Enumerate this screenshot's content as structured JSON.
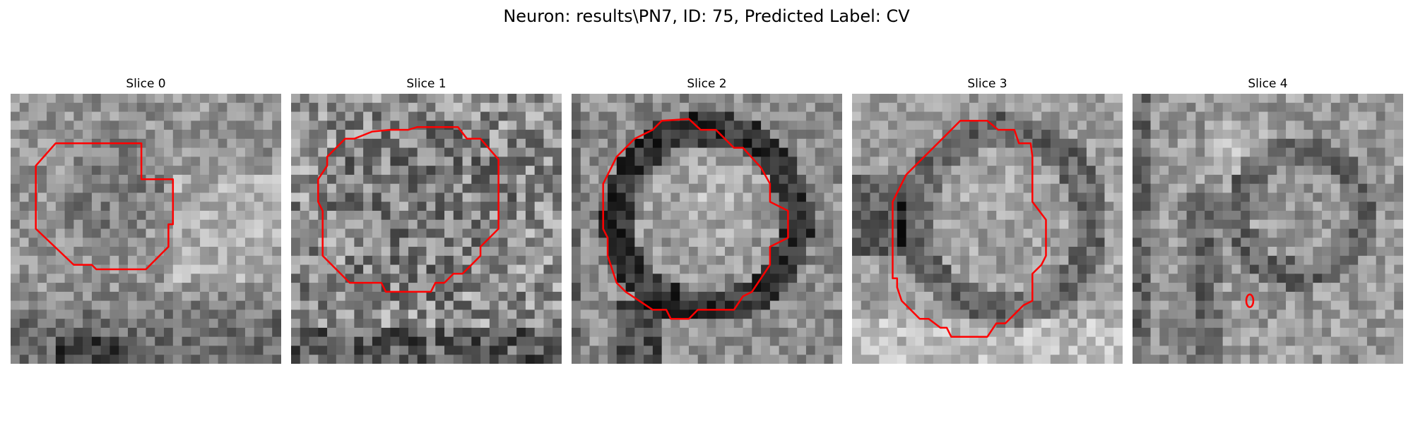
{
  "figure": {
    "title": "Neuron: results\\PN7, ID: 75, Predicted Label: CV"
  },
  "panels": [
    {
      "title": "Slice 0"
    },
    {
      "title": "Slice 1"
    },
    {
      "title": "Slice 2"
    },
    {
      "title": "Slice 3"
    },
    {
      "title": "Slice 4"
    }
  ],
  "contour_color": "#ff0000",
  "image_colormap": "grayscale"
}
